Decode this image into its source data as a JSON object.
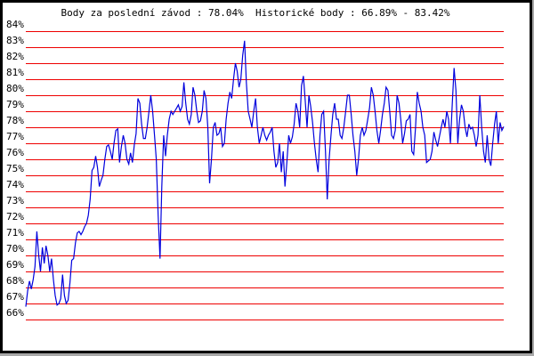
{
  "chart_data": {
    "type": "line",
    "title": "Body za poslední závod : 78.04%  Historické body : 66.89% - 83.42%",
    "xlabel": "",
    "ylabel": "",
    "ylim": [
      66,
      84
    ],
    "yticks": [
      "66%",
      "67%",
      "68%",
      "69%",
      "70%",
      "71%",
      "72%",
      "73%",
      "74%",
      "75%",
      "76%",
      "77%",
      "78%",
      "79%",
      "80%",
      "81%",
      "82%",
      "83%",
      "84%"
    ],
    "grid": true,
    "colors": {
      "line": "#0000dd",
      "grid": "#ee0000"
    },
    "series": [
      {
        "values": [
          66.8,
          67.8,
          68.4,
          67.9,
          68.5,
          69.3,
          71.5,
          70.0,
          69.0,
          70.5,
          69.5,
          70.6,
          70.0,
          69.0,
          69.8,
          68.5,
          67.5,
          66.9,
          67.0,
          67.3,
          68.8,
          67.5,
          67.0,
          67.2,
          68.3,
          69.7,
          69.8,
          70.8,
          71.4,
          71.5,
          71.3,
          71.5,
          71.8,
          72.0,
          72.5,
          73.5,
          75.3,
          75.5,
          76.2,
          75.5,
          74.3,
          74.7,
          75.0,
          76.0,
          76.8,
          76.9,
          76.5,
          76.0,
          77.0,
          77.8,
          77.9,
          75.8,
          76.8,
          77.5,
          77.0,
          76.0,
          75.7,
          76.4,
          75.8,
          76.9,
          77.6,
          79.8,
          79.5,
          78.2,
          77.3,
          77.3,
          78.0,
          79.0,
          80.0,
          79.0,
          77.5,
          76.0,
          72.5,
          69.8,
          74.3,
          77.5,
          76.2,
          77.5,
          78.5,
          79.0,
          78.8,
          79.0,
          79.2,
          79.4,
          79.0,
          79.3,
          80.8,
          79.5,
          78.5,
          78.2,
          78.8,
          80.5,
          80.0,
          79.0,
          78.3,
          78.4,
          79.0,
          80.3,
          79.8,
          78.0,
          74.5,
          76.0,
          78.0,
          78.3,
          77.5,
          77.6,
          78.0,
          76.8,
          77.0,
          78.5,
          79.5,
          80.2,
          79.8,
          81.0,
          82.0,
          81.5,
          80.5,
          81.0,
          82.5,
          83.4,
          80.8,
          79.0,
          78.5,
          78.0,
          79.0,
          79.8,
          78.0,
          77.0,
          77.5,
          78.0,
          77.5,
          77.2,
          77.5,
          77.7,
          78.0,
          76.5,
          75.5,
          75.8,
          77.0,
          75.2,
          76.5,
          74.3,
          75.8,
          77.5,
          77.0,
          77.4,
          78.2,
          79.5,
          79.0,
          78.0,
          80.6,
          81.2,
          79.7,
          78.0,
          80.0,
          79.3,
          78.3,
          77.0,
          76.0,
          75.2,
          77.5,
          78.8,
          79.0,
          76.5,
          73.5,
          76.0,
          77.5,
          78.8,
          79.5,
          78.5,
          78.5,
          77.5,
          77.3,
          78.0,
          79.0,
          80.0,
          80.0,
          78.8,
          77.5,
          76.5,
          75.0,
          76.0,
          77.5,
          78.0,
          77.5,
          77.8,
          78.5,
          79.2,
          80.5,
          80.0,
          79.0,
          77.8,
          77.0,
          77.8,
          78.8,
          79.5,
          80.5,
          80.3,
          79.0,
          77.5,
          77.3,
          77.8,
          80.0,
          79.5,
          78.5,
          77.0,
          77.6,
          78.4,
          78.5,
          78.8,
          76.5,
          76.3,
          78.0,
          80.2,
          79.5,
          79.0,
          78.0,
          77.5,
          75.8,
          75.9,
          76.0,
          76.5,
          77.7,
          77.2,
          76.8,
          77.4,
          78.0,
          78.5,
          78.0,
          79.0,
          78.5,
          77.0,
          79.5,
          81.7,
          80.3,
          77.0,
          78.5,
          79.4,
          79.0,
          78.0,
          77.4,
          78.2,
          77.9,
          78.0,
          77.5,
          76.8,
          77.5,
          80.0,
          78.0,
          76.5,
          75.8,
          77.5,
          76.0,
          75.6,
          77.0,
          78.2,
          79.0,
          77.0,
          78.3,
          77.8,
          78.04
        ]
      }
    ]
  }
}
